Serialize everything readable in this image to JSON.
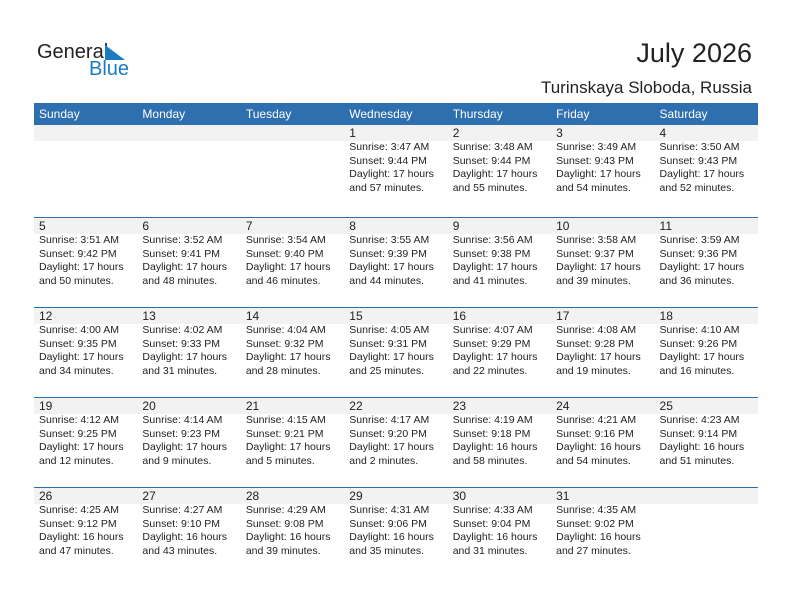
{
  "logo": {
    "general": "General",
    "blue": "Blue"
  },
  "title": "July 2026",
  "location": "Turinskaya Sloboda, Russia",
  "colors": {
    "header": "#2e6fb0",
    "band": "#f2f2f2",
    "logo_blue": "#1a7cc4"
  },
  "weekdays": [
    "Sunday",
    "Monday",
    "Tuesday",
    "Wednesday",
    "Thursday",
    "Friday",
    "Saturday"
  ],
  "weeks": [
    [
      null,
      null,
      null,
      {
        "day": "1",
        "sunrise": "Sunrise: 3:47 AM",
        "sunset": "Sunset: 9:44 PM",
        "daylight": "Daylight: 17 hours",
        "minutes": "and 57 minutes."
      },
      {
        "day": "2",
        "sunrise": "Sunrise: 3:48 AM",
        "sunset": "Sunset: 9:44 PM",
        "daylight": "Daylight: 17 hours",
        "minutes": "and 55 minutes."
      },
      {
        "day": "3",
        "sunrise": "Sunrise: 3:49 AM",
        "sunset": "Sunset: 9:43 PM",
        "daylight": "Daylight: 17 hours",
        "minutes": "and 54 minutes."
      },
      {
        "day": "4",
        "sunrise": "Sunrise: 3:50 AM",
        "sunset": "Sunset: 9:43 PM",
        "daylight": "Daylight: 17 hours",
        "minutes": "and 52 minutes."
      }
    ],
    [
      {
        "day": "5",
        "sunrise": "Sunrise: 3:51 AM",
        "sunset": "Sunset: 9:42 PM",
        "daylight": "Daylight: 17 hours",
        "minutes": "and 50 minutes."
      },
      {
        "day": "6",
        "sunrise": "Sunrise: 3:52 AM",
        "sunset": "Sunset: 9:41 PM",
        "daylight": "Daylight: 17 hours",
        "minutes": "and 48 minutes."
      },
      {
        "day": "7",
        "sunrise": "Sunrise: 3:54 AM",
        "sunset": "Sunset: 9:40 PM",
        "daylight": "Daylight: 17 hours",
        "minutes": "and 46 minutes."
      },
      {
        "day": "8",
        "sunrise": "Sunrise: 3:55 AM",
        "sunset": "Sunset: 9:39 PM",
        "daylight": "Daylight: 17 hours",
        "minutes": "and 44 minutes."
      },
      {
        "day": "9",
        "sunrise": "Sunrise: 3:56 AM",
        "sunset": "Sunset: 9:38 PM",
        "daylight": "Daylight: 17 hours",
        "minutes": "and 41 minutes."
      },
      {
        "day": "10",
        "sunrise": "Sunrise: 3:58 AM",
        "sunset": "Sunset: 9:37 PM",
        "daylight": "Daylight: 17 hours",
        "minutes": "and 39 minutes."
      },
      {
        "day": "11",
        "sunrise": "Sunrise: 3:59 AM",
        "sunset": "Sunset: 9:36 PM",
        "daylight": "Daylight: 17 hours",
        "minutes": "and 36 minutes."
      }
    ],
    [
      {
        "day": "12",
        "sunrise": "Sunrise: 4:00 AM",
        "sunset": "Sunset: 9:35 PM",
        "daylight": "Daylight: 17 hours",
        "minutes": "and 34 minutes."
      },
      {
        "day": "13",
        "sunrise": "Sunrise: 4:02 AM",
        "sunset": "Sunset: 9:33 PM",
        "daylight": "Daylight: 17 hours",
        "minutes": "and 31 minutes."
      },
      {
        "day": "14",
        "sunrise": "Sunrise: 4:04 AM",
        "sunset": "Sunset: 9:32 PM",
        "daylight": "Daylight: 17 hours",
        "minutes": "and 28 minutes."
      },
      {
        "day": "15",
        "sunrise": "Sunrise: 4:05 AM",
        "sunset": "Sunset: 9:31 PM",
        "daylight": "Daylight: 17 hours",
        "minutes": "and 25 minutes."
      },
      {
        "day": "16",
        "sunrise": "Sunrise: 4:07 AM",
        "sunset": "Sunset: 9:29 PM",
        "daylight": "Daylight: 17 hours",
        "minutes": "and 22 minutes."
      },
      {
        "day": "17",
        "sunrise": "Sunrise: 4:08 AM",
        "sunset": "Sunset: 9:28 PM",
        "daylight": "Daylight: 17 hours",
        "minutes": "and 19 minutes."
      },
      {
        "day": "18",
        "sunrise": "Sunrise: 4:10 AM",
        "sunset": "Sunset: 9:26 PM",
        "daylight": "Daylight: 17 hours",
        "minutes": "and 16 minutes."
      }
    ],
    [
      {
        "day": "19",
        "sunrise": "Sunrise: 4:12 AM",
        "sunset": "Sunset: 9:25 PM",
        "daylight": "Daylight: 17 hours",
        "minutes": "and 12 minutes."
      },
      {
        "day": "20",
        "sunrise": "Sunrise: 4:14 AM",
        "sunset": "Sunset: 9:23 PM",
        "daylight": "Daylight: 17 hours",
        "minutes": "and 9 minutes."
      },
      {
        "day": "21",
        "sunrise": "Sunrise: 4:15 AM",
        "sunset": "Sunset: 9:21 PM",
        "daylight": "Daylight: 17 hours",
        "minutes": "and 5 minutes."
      },
      {
        "day": "22",
        "sunrise": "Sunrise: 4:17 AM",
        "sunset": "Sunset: 9:20 PM",
        "daylight": "Daylight: 17 hours",
        "minutes": "and 2 minutes."
      },
      {
        "day": "23",
        "sunrise": "Sunrise: 4:19 AM",
        "sunset": "Sunset: 9:18 PM",
        "daylight": "Daylight: 16 hours",
        "minutes": "and 58 minutes."
      },
      {
        "day": "24",
        "sunrise": "Sunrise: 4:21 AM",
        "sunset": "Sunset: 9:16 PM",
        "daylight": "Daylight: 16 hours",
        "minutes": "and 54 minutes."
      },
      {
        "day": "25",
        "sunrise": "Sunrise: 4:23 AM",
        "sunset": "Sunset: 9:14 PM",
        "daylight": "Daylight: 16 hours",
        "minutes": "and 51 minutes."
      }
    ],
    [
      {
        "day": "26",
        "sunrise": "Sunrise: 4:25 AM",
        "sunset": "Sunset: 9:12 PM",
        "daylight": "Daylight: 16 hours",
        "minutes": "and 47 minutes."
      },
      {
        "day": "27",
        "sunrise": "Sunrise: 4:27 AM",
        "sunset": "Sunset: 9:10 PM",
        "daylight": "Daylight: 16 hours",
        "minutes": "and 43 minutes."
      },
      {
        "day": "28",
        "sunrise": "Sunrise: 4:29 AM",
        "sunset": "Sunset: 9:08 PM",
        "daylight": "Daylight: 16 hours",
        "minutes": "and 39 minutes."
      },
      {
        "day": "29",
        "sunrise": "Sunrise: 4:31 AM",
        "sunset": "Sunset: 9:06 PM",
        "daylight": "Daylight: 16 hours",
        "minutes": "and 35 minutes."
      },
      {
        "day": "30",
        "sunrise": "Sunrise: 4:33 AM",
        "sunset": "Sunset: 9:04 PM",
        "daylight": "Daylight: 16 hours",
        "minutes": "and 31 minutes."
      },
      {
        "day": "31",
        "sunrise": "Sunrise: 4:35 AM",
        "sunset": "Sunset: 9:02 PM",
        "daylight": "Daylight: 16 hours",
        "minutes": "and 27 minutes."
      },
      null
    ]
  ]
}
